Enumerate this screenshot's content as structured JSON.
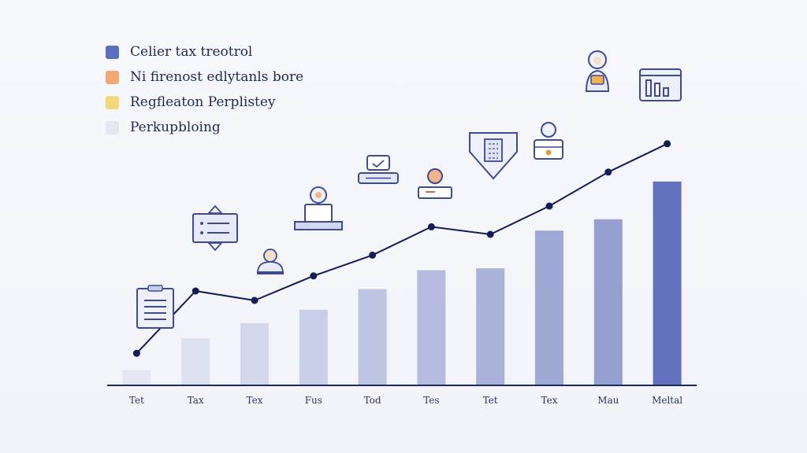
{
  "legend": [
    {
      "label": "Celier tax treotrol",
      "color": "#5b6ec0"
    },
    {
      "label": "Ni firenost edlytanls bore",
      "color": "#f3a774"
    },
    {
      "label": "Regfleaton Perplistey",
      "color": "#f5d77c"
    },
    {
      "label": "Perkupbloing",
      "color": "#e4e7f2"
    }
  ],
  "chart_data": {
    "type": "bar",
    "categories": [
      "Tet",
      "Tax",
      "Tex",
      "Fus",
      "Tod",
      "Tes",
      "Tet",
      "Tex",
      "Mau",
      "Meltal"
    ],
    "series": [
      {
        "values": [
          8,
          25,
          33,
          40,
          51,
          61,
          62,
          82,
          88,
          108
        ]
      },
      {
        "values": [
          17,
          50,
          45,
          58,
          69,
          84,
          80,
          95,
          113,
          128
        ]
      }
    ],
    "ylim": [
      0,
      150
    ],
    "bar_colors": [
      "#e4e7f3",
      "#dde1f0",
      "#d3d8ec",
      "#c9cfe8",
      "#bec5e3",
      "#b5bcdf",
      "#aab2da",
      "#9fa8d5",
      "#95a0d1",
      "#6272be"
    ],
    "line_color": "#141c57",
    "axis_color": "#1d2a63",
    "icons": [
      "clipboard-icon",
      "message-sign-icon",
      "person-desk-icon",
      "scanner-desk-icon",
      "tablet-chat-icon",
      "person-laptop-icon",
      "shield-document-icon",
      "person-badge-icon",
      "woman-tablet-icon",
      "chart-frame-icon"
    ]
  }
}
